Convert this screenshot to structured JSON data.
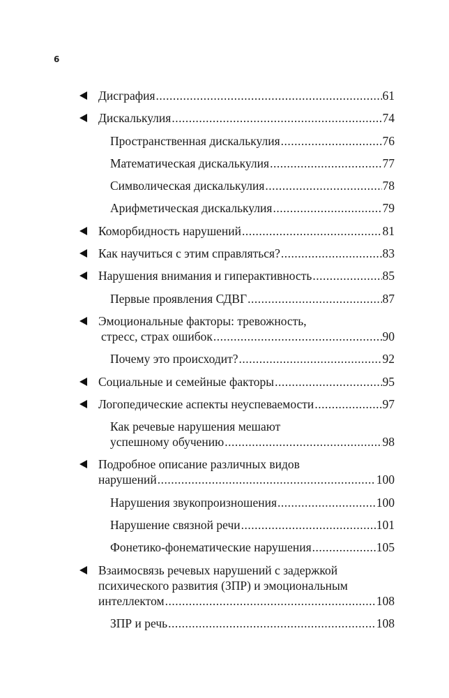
{
  "page_number": "6",
  "toc": [
    {
      "level": 1,
      "lines": [
        "Дисграфия"
      ],
      "page": "61"
    },
    {
      "level": 1,
      "lines": [
        "Дискалькулия"
      ],
      "page": "74"
    },
    {
      "level": 2,
      "lines": [
        "Пространственная дискалькулия"
      ],
      "page": "76"
    },
    {
      "level": 2,
      "lines": [
        "Математическая дискалькулия"
      ],
      "page": "77"
    },
    {
      "level": 2,
      "lines": [
        "Символическая дискалькулия"
      ],
      "page": "78"
    },
    {
      "level": 2,
      "lines": [
        "Арифметическая дискалькулия"
      ],
      "page": "79"
    },
    {
      "level": 1,
      "lines": [
        "Коморбидность нарушений"
      ],
      "page": "81"
    },
    {
      "level": 1,
      "lines": [
        "Как научиться с этим справляться?"
      ],
      "page": "83"
    },
    {
      "level": 1,
      "lines": [
        "Нарушения внимания и гиперактивность"
      ],
      "page": "85"
    },
    {
      "level": 2,
      "lines": [
        "Первые проявления СДВГ"
      ],
      "page": "87"
    },
    {
      "level": 1,
      "lines": [
        "Эмоциональные факторы: тревожность,",
        "стресс, страх ошибок"
      ],
      "page": "90"
    },
    {
      "level": 2,
      "lines": [
        "Почему это происходит?"
      ],
      "page": "92"
    },
    {
      "level": 1,
      "lines": [
        "Социальные и семейные факторы"
      ],
      "page": "95"
    },
    {
      "level": 1,
      "lines": [
        "Логопедические аспекты неуспеваемости"
      ],
      "page": "97"
    },
    {
      "level": 2,
      "lines": [
        "Как речевые нарушения мешают",
        "успешному обучению"
      ],
      "page": "98"
    },
    {
      "level": 1,
      "lines": [
        "Подробное описание различных видов",
        "нарушений"
      ],
      "page": "100"
    },
    {
      "level": 2,
      "lines": [
        "Нарушения звукопроизношения"
      ],
      "page": "100"
    },
    {
      "level": 2,
      "lines": [
        "Нарушение связной речи"
      ],
      "page": "101"
    },
    {
      "level": 2,
      "lines": [
        "Фонетико-фонематические нарушения"
      ],
      "page": "105"
    },
    {
      "level": 1,
      "lines": [
        "Взаимосвязь речевых нарушений с задержкой",
        "психического развития (ЗПР) и эмоциональным",
        "интеллектом"
      ],
      "page": "108"
    },
    {
      "level": 2,
      "lines": [
        "ЗПР и речь"
      ],
      "page": "108"
    }
  ]
}
